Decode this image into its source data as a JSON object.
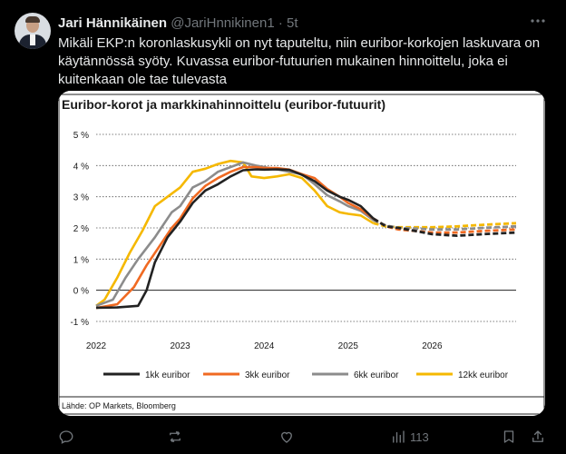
{
  "tweet": {
    "author_name": "Jari Hännikäinen",
    "handle": "@JariHnnikinen1",
    "separator": "·",
    "time": "5t",
    "text": "Mikäli EKP:n koronlaskusykli on nyt taputeltu, niin euribor-korkojen laskuvara on käytännössä syöty. Kuvassa euribor-futuurien mukainen hinnoittelu, joka ei kuitenkaan ole tae tulevasta",
    "views_count": "113"
  },
  "icons": {
    "more": "more-dots-icon",
    "reply": "reply-icon",
    "retweet": "retweet-icon",
    "like": "heart-icon",
    "views": "bar-chart-icon",
    "bookmark": "bookmark-icon",
    "share": "share-icon"
  },
  "chart_data": {
    "type": "line",
    "title": "Euribor-korot ja markkinahinnoittelu (euribor-futuurit)",
    "source": "Lähde: OP Markets, Bloomberg",
    "x_ticks": [
      "2022",
      "2023",
      "2024",
      "2025",
      "2026"
    ],
    "y_ticks": [
      "5 %",
      "4 %",
      "3 %",
      "2 %",
      "1 %",
      "0 %",
      "-1 %"
    ],
    "ylim": [
      -1,
      5
    ],
    "xlim": [
      2022.0,
      2027.0
    ],
    "grid": true,
    "legend_position": "bottom",
    "forecast_start": 2025.35,
    "series": [
      {
        "name": "1kk euribor",
        "color": "#222222",
        "points": [
          [
            2022.0,
            -0.56
          ],
          [
            2022.25,
            -0.55
          ],
          [
            2022.5,
            -0.5
          ],
          [
            2022.6,
            0.0
          ],
          [
            2022.7,
            0.9
          ],
          [
            2022.85,
            1.7
          ],
          [
            2023.0,
            2.2
          ],
          [
            2023.15,
            2.8
          ],
          [
            2023.3,
            3.2
          ],
          [
            2023.45,
            3.4
          ],
          [
            2023.6,
            3.65
          ],
          [
            2023.75,
            3.85
          ],
          [
            2023.9,
            3.88
          ],
          [
            2024.0,
            3.87
          ],
          [
            2024.15,
            3.88
          ],
          [
            2024.3,
            3.86
          ],
          [
            2024.45,
            3.7
          ],
          [
            2024.6,
            3.5
          ],
          [
            2024.75,
            3.2
          ],
          [
            2024.9,
            3.0
          ],
          [
            2025.0,
            2.9
          ],
          [
            2025.15,
            2.7
          ],
          [
            2025.3,
            2.3
          ],
          [
            2025.45,
            2.05
          ],
          [
            2025.6,
            2.0
          ],
          [
            2025.8,
            1.9
          ],
          [
            2026.0,
            1.8
          ],
          [
            2026.3,
            1.75
          ],
          [
            2026.6,
            1.8
          ],
          [
            2027.0,
            1.85
          ]
        ]
      },
      {
        "name": "3kk euribor",
        "color": "#f06a22",
        "points": [
          [
            2022.0,
            -0.57
          ],
          [
            2022.25,
            -0.45
          ],
          [
            2022.45,
            0.1
          ],
          [
            2022.6,
            0.8
          ],
          [
            2022.75,
            1.4
          ],
          [
            2022.9,
            2.0
          ],
          [
            2023.0,
            2.3
          ],
          [
            2023.15,
            2.95
          ],
          [
            2023.3,
            3.35
          ],
          [
            2023.45,
            3.6
          ],
          [
            2023.6,
            3.8
          ],
          [
            2023.75,
            3.95
          ],
          [
            2023.9,
            3.95
          ],
          [
            2024.0,
            3.92
          ],
          [
            2024.15,
            3.92
          ],
          [
            2024.3,
            3.87
          ],
          [
            2024.45,
            3.72
          ],
          [
            2024.6,
            3.6
          ],
          [
            2024.75,
            3.25
          ],
          [
            2024.9,
            3.0
          ],
          [
            2025.0,
            2.8
          ],
          [
            2025.15,
            2.6
          ],
          [
            2025.3,
            2.3
          ],
          [
            2025.45,
            2.05
          ],
          [
            2025.6,
            1.95
          ],
          [
            2025.8,
            1.9
          ],
          [
            2026.0,
            1.85
          ],
          [
            2026.3,
            1.85
          ],
          [
            2026.6,
            1.9
          ],
          [
            2027.0,
            1.95
          ]
        ]
      },
      {
        "name": "6kk euribor",
        "color": "#8c8c8c",
        "points": [
          [
            2022.0,
            -0.5
          ],
          [
            2022.2,
            -0.3
          ],
          [
            2022.35,
            0.4
          ],
          [
            2022.5,
            1.0
          ],
          [
            2022.7,
            1.7
          ],
          [
            2022.9,
            2.5
          ],
          [
            2023.0,
            2.7
          ],
          [
            2023.15,
            3.3
          ],
          [
            2023.3,
            3.5
          ],
          [
            2023.45,
            3.8
          ],
          [
            2023.6,
            3.95
          ],
          [
            2023.75,
            4.1
          ],
          [
            2023.9,
            4.0
          ],
          [
            2024.0,
            3.95
          ],
          [
            2024.15,
            3.88
          ],
          [
            2024.3,
            3.8
          ],
          [
            2024.45,
            3.72
          ],
          [
            2024.6,
            3.4
          ],
          [
            2024.75,
            3.05
          ],
          [
            2024.9,
            2.85
          ],
          [
            2025.0,
            2.7
          ],
          [
            2025.15,
            2.55
          ],
          [
            2025.3,
            2.25
          ],
          [
            2025.45,
            2.08
          ],
          [
            2025.6,
            2.0
          ],
          [
            2025.8,
            1.98
          ],
          [
            2026.0,
            1.95
          ],
          [
            2026.3,
            1.95
          ],
          [
            2026.6,
            2.0
          ],
          [
            2027.0,
            2.05
          ]
        ]
      },
      {
        "name": "12kk euribor",
        "color": "#f5b800",
        "points": [
          [
            2022.0,
            -0.5
          ],
          [
            2022.1,
            -0.3
          ],
          [
            2022.25,
            0.4
          ],
          [
            2022.4,
            1.2
          ],
          [
            2022.55,
            1.9
          ],
          [
            2022.7,
            2.7
          ],
          [
            2022.85,
            3.0
          ],
          [
            2023.0,
            3.3
          ],
          [
            2023.15,
            3.8
          ],
          [
            2023.3,
            3.9
          ],
          [
            2023.45,
            4.05
          ],
          [
            2023.6,
            4.15
          ],
          [
            2023.75,
            4.1
          ],
          [
            2023.85,
            3.65
          ],
          [
            2024.0,
            3.6
          ],
          [
            2024.15,
            3.65
          ],
          [
            2024.3,
            3.72
          ],
          [
            2024.45,
            3.6
          ],
          [
            2024.6,
            3.2
          ],
          [
            2024.75,
            2.7
          ],
          [
            2024.9,
            2.5
          ],
          [
            2025.0,
            2.45
          ],
          [
            2025.15,
            2.4
          ],
          [
            2025.3,
            2.15
          ],
          [
            2025.45,
            2.05
          ],
          [
            2025.6,
            2.02
          ],
          [
            2025.8,
            2.02
          ],
          [
            2026.0,
            2.02
          ],
          [
            2026.3,
            2.05
          ],
          [
            2026.6,
            2.1
          ],
          [
            2027.0,
            2.15
          ]
        ]
      }
    ]
  }
}
